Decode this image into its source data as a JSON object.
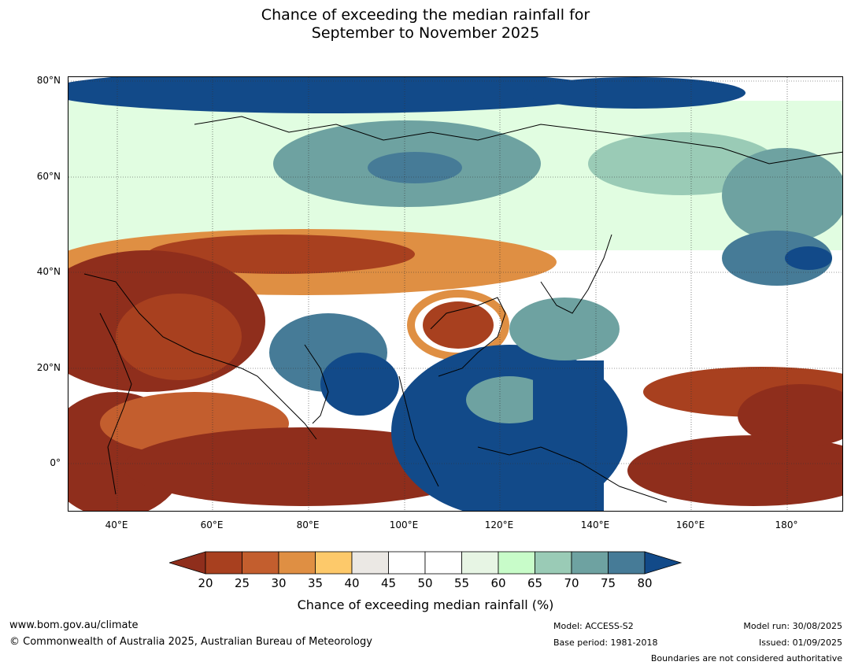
{
  "title_line1": "Chance of exceeding the median rainfall for",
  "title_line2": "September to November 2025",
  "lat_labels": [
    "80°N",
    "60°N",
    "40°N",
    "20°N",
    "0°"
  ],
  "lon_labels": [
    "40°E",
    "60°E",
    "80°E",
    "100°E",
    "120°E",
    "140°E",
    "160°E",
    "180°"
  ],
  "colorbar": {
    "ticks": [
      "20",
      "25",
      "30",
      "35",
      "40",
      "45",
      "50",
      "55",
      "60",
      "65",
      "70",
      "75",
      "80"
    ],
    "colors": [
      "#8f2e1c",
      "#a8401f",
      "#c35e2e",
      "#df8f43",
      "#fdc96a",
      "#ebe8e4",
      "#ffffff",
      "#ffffff",
      "#e7f5e4",
      "#c8fcc9",
      "#9acbb6",
      "#6ea2a1",
      "#467b97",
      "#124a89"
    ],
    "label": "Chance of exceeding median rainfall (%)"
  },
  "footer": {
    "url": "www.bom.gov.au/climate",
    "copyright": "© Commonwealth of Australia 2025, Australian Bureau of Meteorology",
    "model": "Model: ACCESS-S2",
    "base_period": "Base period: 1981-2018",
    "model_run": "Model run: 30/08/2025",
    "issued": "Issued: 01/09/2025",
    "disclaimer": "Boundaries are not considered authoritative"
  }
}
